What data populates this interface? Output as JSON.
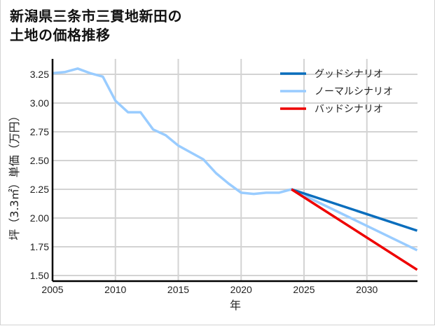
{
  "title_line1": "新潟県三条市三貫地新田の",
  "title_line2": "土地の価格推移",
  "chart_data": {
    "type": "line",
    "title": "新潟県三条市三貫地新田の土地の価格推移",
    "xlabel": "年",
    "ylabel": "坪（3.3㎡）単価（万円）",
    "xlim": [
      2005,
      2034
    ],
    "ylim": [
      1.5,
      3.35
    ],
    "x_ticks": [
      2005,
      2010,
      2015,
      2020,
      2025,
      2030
    ],
    "y_ticks": [
      1.5,
      1.75,
      2.0,
      2.25,
      2.5,
      2.75,
      3.0,
      3.25
    ],
    "y_tick_labels": [
      "1.50",
      "1.75",
      "2.00",
      "2.25",
      "2.50",
      "2.75",
      "3.00",
      "3.25"
    ],
    "grid": true,
    "legend_position": "upper right",
    "series": [
      {
        "name": "グッドシナリオ",
        "color": "#0a6ebd",
        "x": [
          2024,
          2034
        ],
        "values": [
          2.25,
          1.89
        ]
      },
      {
        "name": "ノーマルシナリオ",
        "color": "#99ccff",
        "x": [
          2005,
          2006,
          2007,
          2008,
          2009,
          2010,
          2011,
          2012,
          2013,
          2014,
          2015,
          2016,
          2017,
          2018,
          2019,
          2020,
          2021,
          2022,
          2023,
          2024,
          2034
        ],
        "values": [
          3.26,
          3.27,
          3.3,
          3.26,
          3.23,
          3.02,
          2.92,
          2.92,
          2.77,
          2.72,
          2.63,
          2.57,
          2.51,
          2.39,
          2.3,
          2.22,
          2.21,
          2.22,
          2.22,
          2.25,
          1.72
        ]
      },
      {
        "name": "バッドシナリオ",
        "color": "#ee0000",
        "x": [
          2024,
          2034
        ],
        "values": [
          2.25,
          1.55
        ]
      }
    ]
  }
}
